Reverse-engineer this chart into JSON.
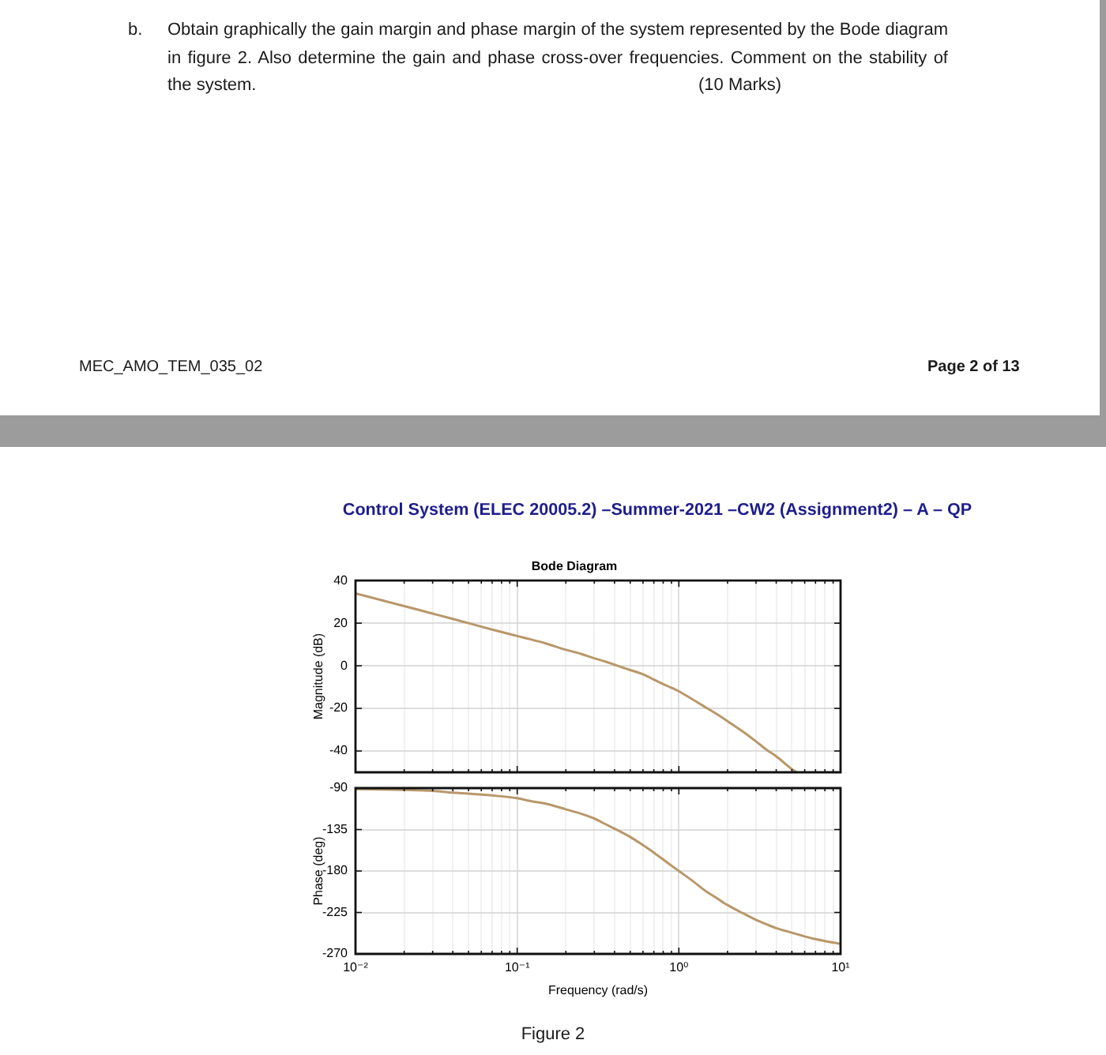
{
  "chart_data": [
    {
      "type": "line",
      "title": "Bode Diagram",
      "ylabel": "Magnitude (dB)",
      "x": [
        0.01,
        0.02,
        0.03,
        0.04,
        0.05,
        0.07,
        0.1,
        0.12,
        0.15,
        0.2,
        0.25,
        0.3,
        0.35,
        0.4,
        0.5,
        0.6,
        0.7,
        0.85,
        1,
        1.2,
        1.5,
        1.7,
        2,
        2.5,
        3,
        3.5,
        4,
        5,
        5.35
      ],
      "series": [
        {
          "color": "#b8976a",
          "values": [
            34,
            28,
            24.5,
            22,
            20,
            17,
            14,
            12.5,
            10.5,
            7.5,
            5.5,
            3.5,
            2,
            0.5,
            -2,
            -4,
            -6.5,
            -9.5,
            -12,
            -15.5,
            -20,
            -22.5,
            -26,
            -31,
            -35.5,
            -39.5,
            -42.5,
            -48.5,
            -50
          ]
        }
      ],
      "log": "x",
      "xlim": [
        0.01,
        10
      ],
      "xticks": [
        0.01,
        {
          "value": 0.02,
          "label": null
        },
        {
          "value": 0.03,
          "label": null
        },
        {
          "value": 0.04,
          "label": null
        },
        {
          "value": 0.05,
          "label": null
        },
        {
          "value": 0.06,
          "label": null
        },
        {
          "value": 0.07,
          "label": null
        },
        {
          "value": 0.08,
          "label": null
        },
        {
          "value": 0.09,
          "label": null
        },
        0.1,
        {
          "value": 0.2,
          "label": null
        },
        {
          "value": 0.3,
          "label": null
        },
        {
          "value": 0.4,
          "label": null
        },
        {
          "value": 0.5,
          "label": null
        },
        {
          "value": 0.6,
          "label": null
        },
        {
          "value": 0.7,
          "label": null
        },
        {
          "value": 0.8,
          "label": null
        },
        {
          "value": 0.9,
          "label": null
        },
        1,
        {
          "value": 2,
          "label": null
        },
        {
          "value": 3,
          "label": null
        },
        {
          "value": 4,
          "label": null
        },
        {
          "value": 5,
          "label": null
        },
        {
          "value": 6,
          "label": null
        },
        {
          "value": 7,
          "label": null
        },
        {
          "value": 8,
          "label": null
        },
        {
          "value": 9,
          "label": null
        },
        10
      ],
      "ylim": [
        -50,
        40
      ],
      "yticks": [
        -40,
        -20,
        0,
        20,
        40
      ],
      "grid": true,
      "tick_labels": "y",
      "line_style": "solid",
      "annotations": [
        "b.",
        "Obtain graphically the gain margin and phase margin of the system represented by the Bode diagram in figure 2. Also determine the gain and phase cross-over frequencies. Comment on the stability of the system.",
        "(10 Marks)",
        "MEC_AMO_TEM_035_02",
        "Page 2 of 13",
        "Control System (ELEC 20005.2) –Summer-2021 –CW2 (Assignment2) – A – QP"
      ]
    },
    {
      "type": "line",
      "xlabel": "Frequency (rad/s)",
      "ylabel": "Phase (deg)",
      "x": [
        0.01,
        0.02,
        0.03,
        0.04,
        0.05,
        0.07,
        0.1,
        0.12,
        0.15,
        0.2,
        0.25,
        0.3,
        0.35,
        0.4,
        0.5,
        0.6,
        0.7,
        0.85,
        1,
        1.2,
        1.5,
        1.7,
        2,
        2.5,
        3,
        3.5,
        4,
        5,
        6,
        7,
        8,
        10
      ],
      "series": [
        {
          "color": "#b8976a",
          "values": [
            -91,
            -92,
            -93,
            -95,
            -96,
            -98,
            -101,
            -104,
            -107,
            -113,
            -118,
            -123,
            -129,
            -134,
            -143,
            -152,
            -160,
            -171,
            -180,
            -190,
            -203,
            -209,
            -217,
            -226,
            -233,
            -238,
            -242,
            -247,
            -251,
            -254,
            -256,
            -259
          ]
        }
      ],
      "log": "x",
      "xlim": [
        0.01,
        10
      ],
      "xticks": [
        {
          "value": 0.01,
          "label": "10⁻²"
        },
        {
          "value": 0.02,
          "label": null
        },
        {
          "value": 0.03,
          "label": null
        },
        {
          "value": 0.04,
          "label": null
        },
        {
          "value": 0.05,
          "label": null
        },
        {
          "value": 0.06,
          "label": null
        },
        {
          "value": 0.07,
          "label": null
        },
        {
          "value": 0.08,
          "label": null
        },
        {
          "value": 0.09,
          "label": null
        },
        {
          "value": 0.1,
          "label": "10⁻¹"
        },
        {
          "value": 0.2,
          "label": null
        },
        {
          "value": 0.3,
          "label": null
        },
        {
          "value": 0.4,
          "label": null
        },
        {
          "value": 0.5,
          "label": null
        },
        {
          "value": 0.6,
          "label": null
        },
        {
          "value": 0.7,
          "label": null
        },
        {
          "value": 0.8,
          "label": null
        },
        {
          "value": 0.9,
          "label": null
        },
        {
          "value": 1,
          "label": "10⁰"
        },
        {
          "value": 2,
          "label": null
        },
        {
          "value": 3,
          "label": null
        },
        {
          "value": 4,
          "label": null
        },
        {
          "value": 5,
          "label": null
        },
        {
          "value": 6,
          "label": null
        },
        {
          "value": 7,
          "label": null
        },
        {
          "value": 8,
          "label": null
        },
        {
          "value": 9,
          "label": null
        },
        {
          "value": 10,
          "label": "10¹"
        }
      ],
      "ylim": [
        -270,
        -90
      ],
      "yticks": [
        -270,
        -225,
        -180,
        -135,
        -90
      ],
      "grid": true,
      "line_style": "solid",
      "annotations": [
        "Figure 2"
      ]
    }
  ]
}
